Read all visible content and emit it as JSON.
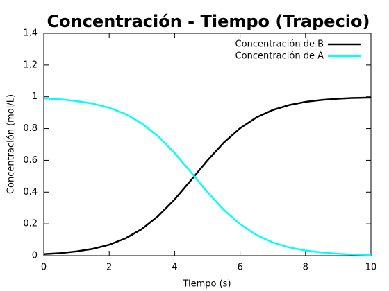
{
  "chart_data": {
    "type": "line",
    "title": "Concentración - Tiempo (Trapecio)",
    "x_label": "Tiempo (s)",
    "y_label": "Concentración (mol/L)",
    "x": [
      0,
      0.5,
      1,
      1.5,
      2,
      2.5,
      3,
      3.5,
      4,
      4.5,
      5,
      5.5,
      6,
      6.5,
      7,
      7.5,
      8,
      8.5,
      9,
      9.5,
      10
    ],
    "series": [
      {
        "name": "Concentración de B",
        "color": "#000000",
        "values": [
          0.01,
          0.016,
          0.027,
          0.043,
          0.069,
          0.109,
          0.168,
          0.25,
          0.354,
          0.475,
          0.599,
          0.711,
          0.802,
          0.87,
          0.917,
          0.948,
          0.968,
          0.98,
          0.988,
          0.993,
          0.995
        ]
      },
      {
        "name": "Concentración de A",
        "color": "#00ffff",
        "values": [
          0.99,
          0.984,
          0.973,
          0.957,
          0.931,
          0.891,
          0.832,
          0.75,
          0.646,
          0.525,
          0.401,
          0.289,
          0.198,
          0.13,
          0.083,
          0.052,
          0.032,
          0.02,
          0.012,
          0.007,
          0.005
        ]
      }
    ],
    "xlim": [
      0,
      10
    ],
    "xticks": [
      0,
      2,
      4,
      6,
      8,
      10
    ],
    "ylim": [
      0,
      1.4
    ],
    "yticks": [
      0,
      0.2,
      0.4,
      0.6,
      0.8,
      1,
      1.2,
      1.4
    ],
    "legend": "top-right",
    "grid": false
  }
}
